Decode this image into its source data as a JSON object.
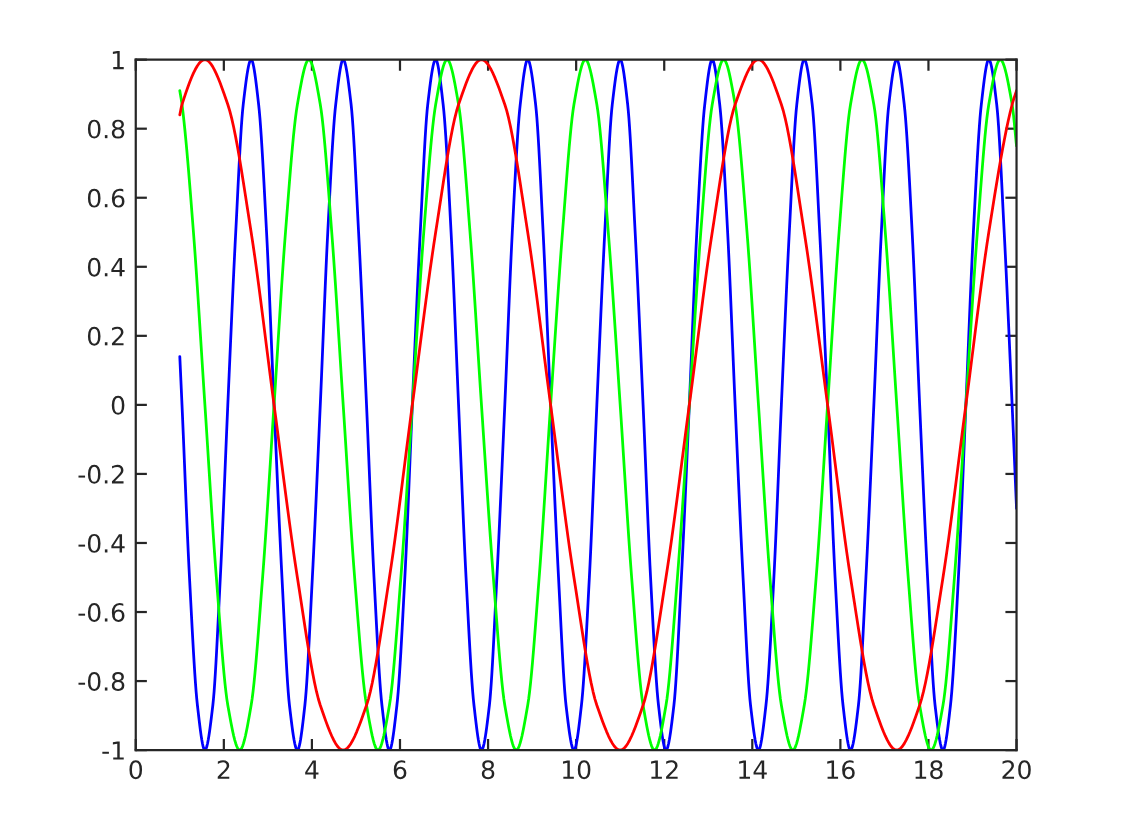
{
  "chart_data": {
    "type": "line",
    "xlim": [
      0,
      20
    ],
    "ylim": [
      -1,
      1
    ],
    "xticks": [
      0,
      2,
      4,
      6,
      8,
      10,
      12,
      14,
      16,
      18,
      20
    ],
    "yticks": [
      -1,
      -0.8,
      -0.6,
      -0.4,
      -0.2,
      0,
      0.2,
      0.4,
      0.6,
      0.8,
      1
    ],
    "grid": false,
    "legend": false,
    "marker": "none",
    "line_style": "solid",
    "series": [
      {
        "color": "#0000ff",
        "x": [
          1,
          1.05,
          1.22,
          1.4,
          1.57,
          1.75,
          1.92,
          2.09,
          2.27,
          2.44,
          2.62,
          2.79,
          2.97,
          3.14,
          3.32,
          3.49,
          3.67,
          3.84,
          4.01,
          4.19,
          4.36,
          4.54,
          4.71,
          4.89,
          5.06,
          5.24,
          5.41,
          5.59,
          5.76,
          5.93,
          6.11,
          6.28,
          6.46,
          6.63,
          6.81,
          6.98,
          7.16,
          7.33,
          7.5,
          7.68,
          7.85,
          8.03,
          8.2,
          8.38,
          8.55,
          8.73,
          8.9,
          9.08,
          9.25,
          9.42,
          9.6,
          9.77,
          9.95,
          10.12,
          10.3,
          10.47,
          10.65,
          10.82,
          11.0,
          11.17,
          11.34,
          11.52,
          11.69,
          11.87,
          12.04,
          12.22,
          12.39,
          12.57,
          12.74,
          12.92,
          13.09,
          13.26,
          13.44,
          13.61,
          13.79,
          13.96,
          14.14,
          14.31,
          14.49,
          14.66,
          14.84,
          15.01,
          15.18,
          15.36,
          15.53,
          15.71,
          15.88,
          16.06,
          16.23,
          16.41,
          16.58,
          16.76,
          16.93,
          17.1,
          17.28,
          17.45,
          17.63,
          17.8,
          17.98,
          18.15,
          18.33,
          18.5,
          18.68,
          18.85,
          19.02,
          19.2,
          19.37,
          19.55,
          19.72,
          19.9,
          20
        ],
        "values": [
          0.14,
          0,
          -0.5,
          -0.87,
          -1,
          -0.87,
          -0.5,
          0,
          0.5,
          0.87,
          1,
          0.87,
          0.5,
          0,
          -0.5,
          -0.87,
          -1,
          -0.87,
          -0.5,
          0,
          0.5,
          0.87,
          1,
          0.87,
          0.5,
          0,
          -0.5,
          -0.87,
          -1,
          -0.87,
          -0.5,
          0,
          0.5,
          0.87,
          1,
          0.87,
          0.5,
          0,
          -0.5,
          -0.87,
          -1,
          -0.87,
          -0.5,
          0,
          0.5,
          0.87,
          1,
          0.87,
          0.5,
          0,
          -0.5,
          -0.87,
          -1,
          -0.87,
          -0.5,
          0,
          0.5,
          0.87,
          1,
          0.87,
          0.5,
          0,
          -0.5,
          -0.87,
          -1,
          -0.87,
          -0.5,
          0,
          0.5,
          0.87,
          1,
          0.87,
          0.5,
          0,
          -0.5,
          -0.87,
          -1,
          -0.87,
          -0.5,
          0,
          0.5,
          0.87,
          1,
          0.87,
          0.5,
          0,
          -0.5,
          -0.87,
          -1,
          -0.87,
          -0.5,
          0,
          0.5,
          0.87,
          1,
          0.87,
          0.5,
          0,
          -0.5,
          -0.87,
          -1,
          -0.87,
          -0.5,
          0,
          0.5,
          0.87,
          1,
          0.87,
          0.5,
          0,
          -0.3
        ]
      },
      {
        "color": "#00ff00",
        "x": [
          1,
          1.05,
          1.31,
          1.57,
          1.83,
          2.09,
          2.36,
          2.62,
          2.88,
          3.14,
          3.4,
          3.67,
          3.93,
          4.19,
          4.45,
          4.71,
          4.97,
          5.24,
          5.5,
          5.76,
          6.02,
          6.28,
          6.54,
          6.81,
          7.07,
          7.33,
          7.59,
          7.85,
          8.12,
          8.38,
          8.64,
          8.9,
          9.16,
          9.42,
          9.69,
          9.95,
          10.21,
          10.47,
          10.73,
          11.0,
          11.26,
          11.52,
          11.78,
          12.04,
          12.3,
          12.57,
          12.83,
          13.09,
          13.35,
          13.61,
          13.88,
          14.14,
          14.4,
          14.66,
          14.92,
          15.18,
          15.45,
          15.71,
          15.97,
          16.23,
          16.49,
          16.76,
          17.02,
          17.28,
          17.54,
          17.8,
          18.06,
          18.33,
          18.59,
          18.85,
          19.11,
          19.37,
          19.63,
          19.9,
          20
        ],
        "values": [
          0.91,
          0.87,
          0.5,
          0,
          -0.5,
          -0.87,
          -1,
          -0.87,
          -0.5,
          0,
          0.5,
          0.87,
          1,
          0.87,
          0.5,
          0,
          -0.5,
          -0.87,
          -1,
          -0.87,
          -0.5,
          0,
          0.5,
          0.87,
          1,
          0.87,
          0.5,
          0,
          -0.5,
          -0.87,
          -1,
          -0.87,
          -0.5,
          0,
          0.5,
          0.87,
          1,
          0.87,
          0.5,
          0,
          -0.5,
          -0.87,
          -1,
          -0.87,
          -0.5,
          0,
          0.5,
          0.87,
          1,
          0.87,
          0.5,
          0,
          -0.5,
          -0.87,
          -1,
          -0.87,
          -0.5,
          0,
          0.5,
          0.87,
          1,
          0.87,
          0.5,
          0,
          -0.5,
          -0.87,
          -1,
          -0.87,
          -0.5,
          0,
          0.5,
          0.87,
          1,
          0.87,
          0.75
        ]
      },
      {
        "color": "#ff0000",
        "x": [
          1,
          1.05,
          1.57,
          2.09,
          2.62,
          3.14,
          3.67,
          4.19,
          4.71,
          5.24,
          5.76,
          6.28,
          6.81,
          7.33,
          7.85,
          8.38,
          8.9,
          9.42,
          9.95,
          10.47,
          11.0,
          11.52,
          12.04,
          12.57,
          13.09,
          13.61,
          14.14,
          14.66,
          15.18,
          15.71,
          16.23,
          16.76,
          17.28,
          17.8,
          18.33,
          18.85,
          19.37,
          19.9,
          20
        ],
        "values": [
          0.84,
          0.87,
          1,
          0.87,
          0.5,
          0,
          -0.5,
          -0.87,
          -1,
          -0.87,
          -0.5,
          0,
          0.5,
          0.87,
          1,
          0.87,
          0.5,
          0,
          -0.5,
          -0.87,
          -1,
          -0.87,
          -0.5,
          0,
          0.5,
          0.87,
          1,
          0.87,
          0.5,
          0,
          -0.5,
          -0.87,
          -1,
          -0.87,
          -0.5,
          0,
          0.5,
          0.87,
          0.91
        ]
      }
    ]
  }
}
